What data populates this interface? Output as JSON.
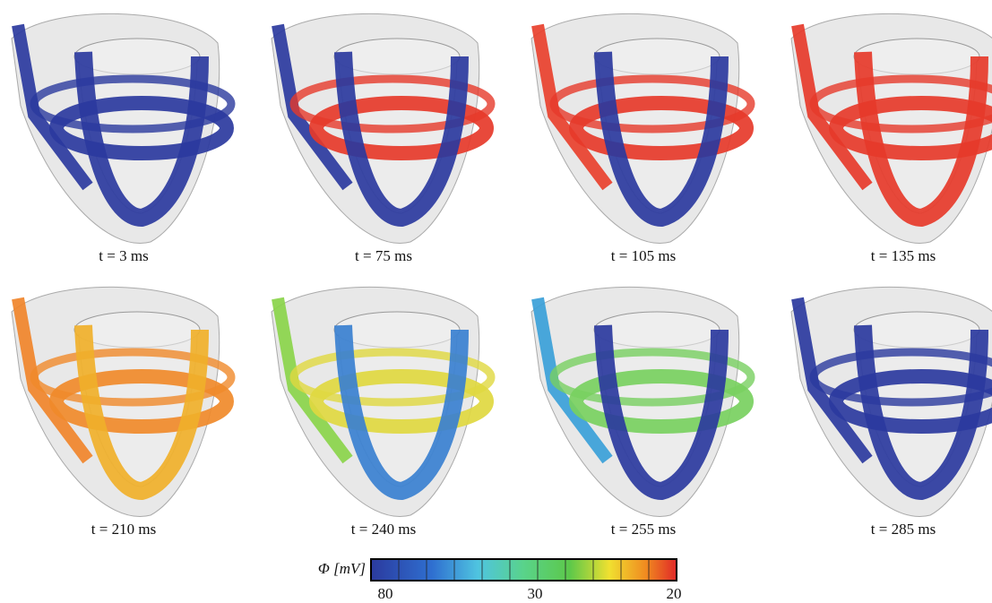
{
  "figure": {
    "panels": [
      {
        "caption": "t = 3 ms"
      },
      {
        "caption": "t = 75 ms"
      },
      {
        "caption": "t = 105 ms"
      },
      {
        "caption": "t = 135 ms"
      },
      {
        "caption": "t = 210 ms"
      },
      {
        "caption": "t = 240 ms"
      },
      {
        "caption": "t = 255 ms"
      },
      {
        "caption": "t = 285 ms"
      }
    ],
    "colorbar": {
      "label": "Φ [mV]",
      "ticks": [
        "80",
        "30",
        "20"
      ]
    }
  }
}
